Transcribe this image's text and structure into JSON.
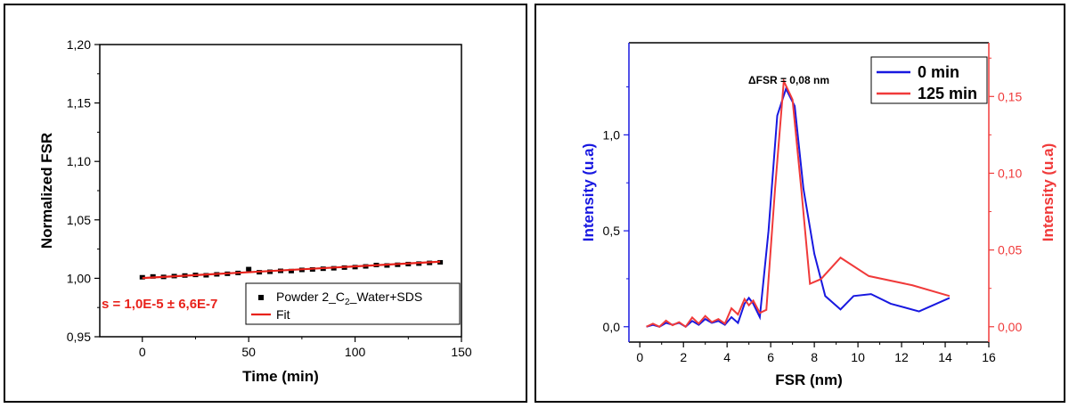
{
  "chart_data": [
    {
      "type": "scatter",
      "title": "",
      "xlabel": "Time (min)",
      "ylabel": "Normalized FSR",
      "xlim": [
        -20,
        150
      ],
      "ylim": [
        0.95,
        1.2
      ],
      "xticks": [
        0,
        50,
        100,
        150
      ],
      "xtick_labels": [
        "0",
        "50",
        "100",
        "150"
      ],
      "yticks": [
        0.95,
        1.0,
        1.05,
        1.1,
        1.15,
        1.2
      ],
      "ytick_labels": [
        "0,95",
        "1,00",
        "1,05",
        "1,10",
        "1,15",
        "1,20"
      ],
      "annotation": "s = 1,0E-5 ± 6,6E-7",
      "legend": {
        "position": "bottom-right",
        "entries": [
          {
            "label_main": "Powder 2_C",
            "label_sub": "2",
            "label_rest": "_Water+SDS",
            "color": "#000000",
            "marker": "square"
          },
          {
            "label": "Fit",
            "color": "#e8221b",
            "marker": "line"
          }
        ]
      },
      "series": [
        {
          "name": "Powder 2_C2_Water+SDS",
          "color": "#000000",
          "x": [
            0,
            5,
            10,
            15,
            20,
            25,
            30,
            35,
            40,
            45,
            50,
            55,
            60,
            65,
            70,
            75,
            80,
            85,
            90,
            95,
            100,
            105,
            110,
            115,
            120,
            125,
            130,
            135,
            140
          ],
          "y": [
            1.0005,
            1.0012,
            1.0008,
            1.0015,
            1.002,
            1.0025,
            1.0022,
            1.003,
            1.0035,
            1.0042,
            1.0075,
            1.0048,
            1.0052,
            1.006,
            1.0058,
            1.0068,
            1.0072,
            1.0078,
            1.0082,
            1.0088,
            1.0092,
            1.0098,
            1.011,
            1.0106,
            1.0112,
            1.0118,
            1.0122,
            1.0128,
            1.0133
          ]
        },
        {
          "name": "Fit",
          "color": "#e8221b",
          "x": [
            0,
            140
          ],
          "y": [
            1.0002,
            1.0142
          ]
        }
      ]
    },
    {
      "type": "line",
      "title": "",
      "xlabel": "FSR (nm)",
      "ylabel": "Intensity (u.a)",
      "ylabel_right": "Intensity (u.a)",
      "xlim": [
        -0.5,
        16
      ],
      "ylim": [
        -0.08,
        1.48
      ],
      "ylim_right": [
        -0.01,
        0.185
      ],
      "xticks": [
        0,
        2,
        4,
        6,
        8,
        10,
        12,
        14,
        16
      ],
      "xtick_labels": [
        "0",
        "2",
        "4",
        "6",
        "8",
        "10",
        "12",
        "14",
        "16"
      ],
      "yticks": [
        0.0,
        0.5,
        1.0
      ],
      "ytick_labels": [
        "0,0",
        "0,5",
        "1,0"
      ],
      "yticks_right": [
        0.0,
        0.05,
        0.1,
        0.15
      ],
      "ytick_labels_right": [
        "0,00",
        "0,05",
        "0,10",
        "0,15"
      ],
      "annotation": "ΔFSR = 0,08 nm",
      "legend": {
        "position": "top-right",
        "entries": [
          {
            "label": "0 min",
            "color": "#1818e0"
          },
          {
            "label": "125 min",
            "color": "#f03a3a"
          }
        ]
      },
      "series": [
        {
          "name": "0 min",
          "color": "#1818e0",
          "axis": "left",
          "x": [
            0.3,
            0.6,
            0.9,
            1.2,
            1.5,
            1.8,
            2.1,
            2.4,
            2.7,
            3.0,
            3.3,
            3.6,
            3.9,
            4.2,
            4.5,
            4.8,
            5.0,
            5.2,
            5.5,
            5.9,
            6.3,
            6.7,
            7.1,
            7.5,
            8.0,
            8.5,
            9.2,
            9.8,
            10.6,
            11.5,
            12.8,
            14.2
          ],
          "y": [
            0.0,
            0.01,
            0.0,
            0.02,
            0.01,
            0.02,
            0.0,
            0.03,
            0.01,
            0.04,
            0.02,
            0.03,
            0.01,
            0.05,
            0.02,
            0.12,
            0.15,
            0.12,
            0.05,
            0.5,
            1.1,
            1.24,
            1.15,
            0.72,
            0.38,
            0.16,
            0.09,
            0.16,
            0.17,
            0.12,
            0.08,
            0.15
          ]
        },
        {
          "name": "125 min",
          "color": "#f03a3a",
          "axis": "right",
          "x": [
            0.3,
            0.6,
            0.9,
            1.2,
            1.5,
            1.8,
            2.1,
            2.4,
            2.7,
            3.0,
            3.3,
            3.6,
            3.9,
            4.2,
            4.5,
            4.8,
            5.0,
            5.2,
            5.5,
            5.8,
            6.2,
            6.6,
            7.0,
            7.4,
            7.8,
            8.3,
            9.2,
            10.5,
            12.5,
            14.2
          ],
          "y": [
            0.0,
            0.002,
            0.0,
            0.004,
            0.001,
            0.003,
            0.0,
            0.006,
            0.002,
            0.007,
            0.003,
            0.005,
            0.002,
            0.012,
            0.008,
            0.018,
            0.014,
            0.017,
            0.009,
            0.011,
            0.09,
            0.16,
            0.148,
            0.09,
            0.028,
            0.031,
            0.045,
            0.033,
            0.027,
            0.02
          ]
        }
      ]
    }
  ]
}
